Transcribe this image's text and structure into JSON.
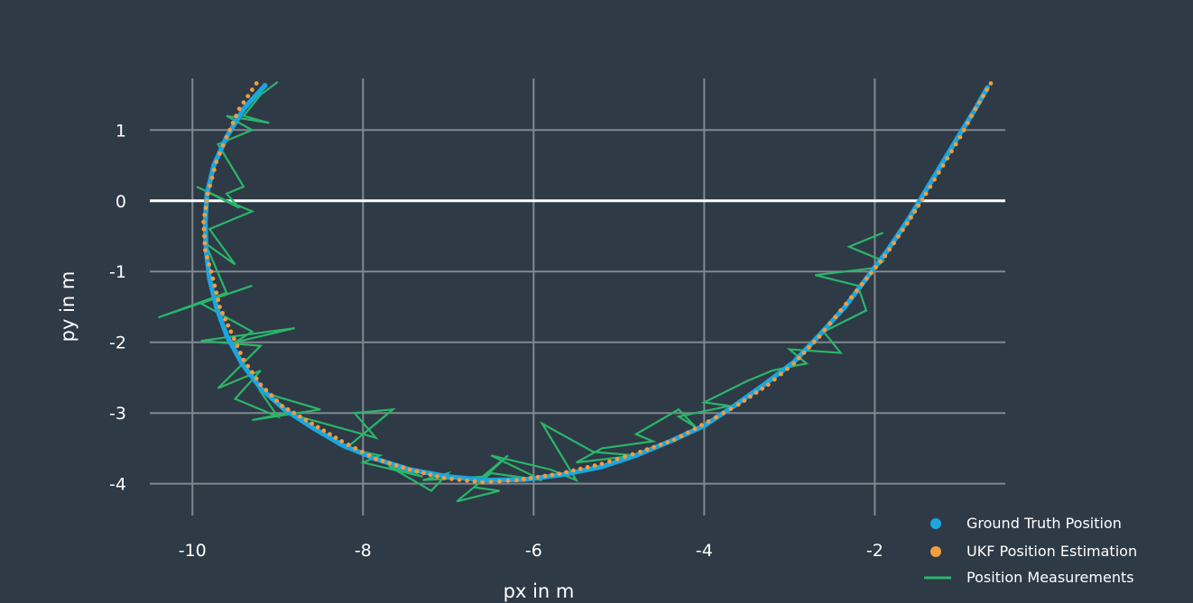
{
  "chart_data": {
    "type": "scatter",
    "title": "",
    "xlabel": "px in m",
    "ylabel": "py in m",
    "xlim": [
      -10.5,
      -0.47
    ],
    "ylim": [
      -4.45,
      1.73
    ],
    "xticks": [
      -10,
      -8,
      -6,
      -4,
      -2
    ],
    "yticks": [
      1,
      0,
      -1,
      -2,
      -3,
      -4
    ],
    "xtick_labels": [
      "-10",
      "-8",
      "-6",
      "-4",
      "-2"
    ],
    "ytick_labels": [
      "1",
      "0",
      "-1",
      "-2",
      "-3",
      "-4"
    ],
    "grid": true,
    "zero_line": true,
    "legend_position": "bottom-right",
    "colors": {
      "background": "#2e3a46",
      "grid": "#808890",
      "zero_line": "#ffffff",
      "ground_truth": "#1ba6e0",
      "ukf": "#f39c3c",
      "measurements": "#2bb56a"
    },
    "series": [
      {
        "name": "Ground Truth Position",
        "style": "dots",
        "x": [
          -9.15,
          -9.4,
          -9.6,
          -9.75,
          -9.83,
          -9.85,
          -9.84,
          -9.8,
          -9.72,
          -9.6,
          -9.42,
          -9.2,
          -8.92,
          -8.6,
          -8.25,
          -7.85,
          -7.45,
          -7.0,
          -6.55,
          -6.1,
          -5.65,
          -5.2,
          -4.8,
          -4.4,
          -4.0,
          -3.65,
          -3.3,
          -2.95,
          -2.65,
          -2.35,
          -2.1,
          -1.85,
          -1.6,
          -1.4,
          -1.2,
          -1.0,
          -0.82,
          -0.68
        ],
        "y": [
          1.63,
          1.3,
          0.9,
          0.5,
          0.1,
          -0.3,
          -0.7,
          -1.1,
          -1.5,
          -1.9,
          -2.3,
          -2.65,
          -2.95,
          -3.2,
          -3.45,
          -3.65,
          -3.8,
          -3.9,
          -3.95,
          -3.94,
          -3.87,
          -3.76,
          -3.6,
          -3.4,
          -3.18,
          -2.9,
          -2.6,
          -2.28,
          -1.9,
          -1.5,
          -1.1,
          -0.7,
          -0.25,
          0.15,
          0.55,
          0.95,
          1.3,
          1.6
        ]
      },
      {
        "name": "UKF Position Estimation",
        "style": "dots",
        "x": [
          -9.25,
          -9.45,
          -9.6,
          -9.72,
          -9.82,
          -9.87,
          -9.85,
          -9.76,
          -9.68,
          -9.55,
          -9.4,
          -9.2,
          -8.95,
          -8.6,
          -8.25,
          -7.85,
          -7.45,
          -7.05,
          -6.6,
          -6.2,
          -5.7,
          -5.2,
          -4.75,
          -4.35,
          -3.95,
          -3.6,
          -3.25,
          -2.95,
          -2.65,
          -2.4,
          -2.15,
          -1.88,
          -1.62,
          -1.4,
          -1.2,
          -1.0,
          -0.82,
          -0.64
        ],
        "y": [
          1.66,
          1.3,
          0.9,
          0.55,
          0.1,
          -0.3,
          -0.7,
          -1.1,
          -1.5,
          -1.85,
          -2.25,
          -2.6,
          -2.9,
          -3.15,
          -3.4,
          -3.65,
          -3.8,
          -3.92,
          -3.98,
          -3.95,
          -3.86,
          -3.72,
          -3.55,
          -3.38,
          -3.12,
          -2.88,
          -2.6,
          -2.3,
          -1.92,
          -1.55,
          -1.18,
          -0.78,
          -0.32,
          0.1,
          0.5,
          0.9,
          1.3,
          1.66
        ]
      },
      {
        "name": "Position Measurements",
        "style": "line",
        "x": [
          -9.0,
          -9.2,
          -9.4,
          -9.1,
          -9.6,
          -9.3,
          -9.7,
          -9.5,
          -9.4,
          -9.6,
          -9.45,
          -9.95,
          -9.6,
          -9.3,
          -9.8,
          -9.5,
          -9.85,
          -9.6,
          -10.4,
          -9.3,
          -9.9,
          -9.3,
          -9.5,
          -8.8,
          -9.9,
          -9.2,
          -9.7,
          -9.2,
          -9.5,
          -9.0,
          -9.2,
          -8.5,
          -9.3,
          -8.9,
          -8.3,
          -7.85,
          -8.1,
          -7.65,
          -8.2,
          -7.8,
          -8.0,
          -7.3,
          -7.7,
          -7.2,
          -7.0,
          -7.3,
          -6.6,
          -6.3,
          -6.7,
          -6.4,
          -6.9,
          -6.5,
          -5.9,
          -6.5,
          -5.8,
          -5.5,
          -5.9,
          -5.3,
          -4.8,
          -5.5,
          -5.2,
          -4.6,
          -4.8,
          -4.3,
          -4.1,
          -4.3,
          -3.7,
          -4.0,
          -3.5,
          -3.2,
          -2.8,
          -3.0,
          -2.4,
          -2.6,
          -2.1,
          -2.2,
          -2.7,
          -2.0,
          -1.9,
          -2.3,
          -1.9
        ],
        "y": [
          1.68,
          1.5,
          1.2,
          1.1,
          1.2,
          1.0,
          0.8,
          0.4,
          0.2,
          0.1,
          -0.1,
          0.2,
          0.0,
          -0.15,
          -0.4,
          -0.9,
          -0.6,
          -1.3,
          -1.65,
          -1.2,
          -1.45,
          -1.85,
          -2.0,
          -1.8,
          -1.98,
          -2.05,
          -2.65,
          -2.4,
          -2.8,
          -3.05,
          -2.7,
          -2.95,
          -3.1,
          -3.0,
          -3.2,
          -3.35,
          -3.0,
          -2.95,
          -3.5,
          -3.6,
          -3.7,
          -3.9,
          -3.75,
          -4.1,
          -3.85,
          -3.95,
          -3.9,
          -3.6,
          -4.05,
          -4.1,
          -4.25,
          -3.85,
          -3.95,
          -3.6,
          -3.8,
          -3.95,
          -3.15,
          -3.55,
          -3.6,
          -3.7,
          -3.5,
          -3.4,
          -3.3,
          -2.95,
          -3.2,
          -3.05,
          -2.9,
          -2.85,
          -2.55,
          -2.4,
          -2.3,
          -2.1,
          -2.15,
          -1.85,
          -1.55,
          -1.2,
          -1.05,
          -0.95,
          -0.85,
          -0.65,
          -0.45
        ]
      }
    ]
  }
}
